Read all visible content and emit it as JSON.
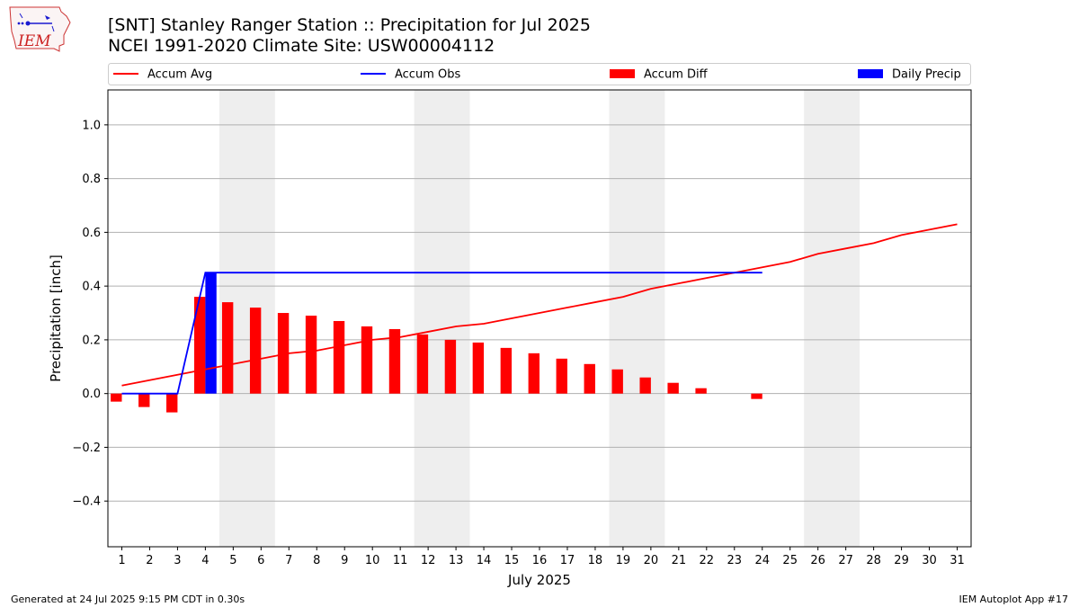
{
  "title_line1": "[SNT] Stanley Ranger Station :: Precipitation for Jul 2025",
  "title_line2": "NCEI 1991-2020 Climate Site: USW00004112",
  "logo_text": "IEM",
  "footer_left": "Generated at 24 Jul 2025 9:15 PM CDT in 0.30s",
  "footer_right": "IEM Autoplot App #17",
  "colors": {
    "accum_avg": "#ff0000",
    "accum_obs": "#0000ff",
    "accum_diff": "#ff0000",
    "daily_precip": "#0000ff",
    "weekend_shade": "#eeeeee",
    "grid": "#b0b0b0"
  },
  "chart_data": {
    "type": "bar",
    "xlabel": "July 2025",
    "ylabel": "Precipitation [inch]",
    "xlim": [
      0.5,
      31.5
    ],
    "ylim": [
      -0.57,
      1.13
    ],
    "yticks": [
      -0.4,
      -0.2,
      0.0,
      0.2,
      0.4,
      0.6,
      0.8,
      1.0
    ],
    "ytick_labels": [
      "−0.4",
      "−0.2",
      "0.0",
      "0.2",
      "0.4",
      "0.6",
      "0.8",
      "1.0"
    ],
    "xticks": [
      1,
      2,
      3,
      4,
      5,
      6,
      7,
      8,
      9,
      10,
      11,
      12,
      13,
      14,
      15,
      16,
      17,
      18,
      19,
      20,
      21,
      22,
      23,
      24,
      25,
      26,
      27,
      28,
      29,
      30,
      31
    ],
    "grid": "horizontal",
    "legend_placement": "top",
    "weekend_days": [
      [
        5,
        6
      ],
      [
        12,
        13
      ],
      [
        19,
        20
      ],
      [
        26,
        27
      ]
    ],
    "series": [
      {
        "name": "Accum Avg",
        "kind": "line",
        "days": [
          1,
          2,
          3,
          4,
          5,
          6,
          7,
          8,
          9,
          10,
          11,
          12,
          13,
          14,
          15,
          16,
          17,
          18,
          19,
          20,
          21,
          22,
          23,
          24,
          25,
          26,
          27,
          28,
          29,
          30,
          31
        ],
        "values": [
          0.03,
          0.05,
          0.07,
          0.09,
          0.11,
          0.13,
          0.15,
          0.16,
          0.18,
          0.2,
          0.21,
          0.23,
          0.25,
          0.26,
          0.28,
          0.3,
          0.32,
          0.34,
          0.36,
          0.39,
          0.41,
          0.43,
          0.45,
          0.47,
          0.49,
          0.52,
          0.54,
          0.56,
          0.59,
          0.61,
          0.63
        ]
      },
      {
        "name": "Accum Obs",
        "kind": "line",
        "days": [
          1,
          2,
          3,
          4,
          5,
          6,
          7,
          8,
          9,
          10,
          11,
          12,
          13,
          14,
          15,
          16,
          17,
          18,
          19,
          20,
          21,
          22,
          23,
          24
        ],
        "values": [
          0,
          0,
          0,
          0.45,
          0.45,
          0.45,
          0.45,
          0.45,
          0.45,
          0.45,
          0.45,
          0.45,
          0.45,
          0.45,
          0.45,
          0.45,
          0.45,
          0.45,
          0.45,
          0.45,
          0.45,
          0.45,
          0.45,
          0.45
        ]
      },
      {
        "name": "Accum Diff",
        "kind": "bar",
        "days": [
          1,
          2,
          3,
          4,
          5,
          6,
          7,
          8,
          9,
          10,
          11,
          12,
          13,
          14,
          15,
          16,
          17,
          18,
          19,
          20,
          21,
          22,
          23,
          24
        ],
        "values": [
          -0.03,
          -0.05,
          -0.07,
          0.36,
          0.34,
          0.32,
          0.3,
          0.29,
          0.27,
          0.25,
          0.24,
          0.22,
          0.2,
          0.19,
          0.17,
          0.15,
          0.13,
          0.11,
          0.09,
          0.06,
          0.04,
          0.02,
          0.0,
          -0.02
        ]
      },
      {
        "name": "Daily Precip",
        "kind": "bar",
        "days": [
          1,
          2,
          3,
          4,
          5,
          6,
          7,
          8,
          9,
          10,
          11,
          12,
          13,
          14,
          15,
          16,
          17,
          18,
          19,
          20,
          21,
          22,
          23,
          24
        ],
        "values": [
          0,
          0,
          0,
          0.45,
          0,
          0,
          0,
          0,
          0,
          0,
          0,
          0,
          0,
          0,
          0,
          0,
          0,
          0,
          0,
          0,
          0,
          0,
          0,
          0
        ]
      }
    ]
  }
}
